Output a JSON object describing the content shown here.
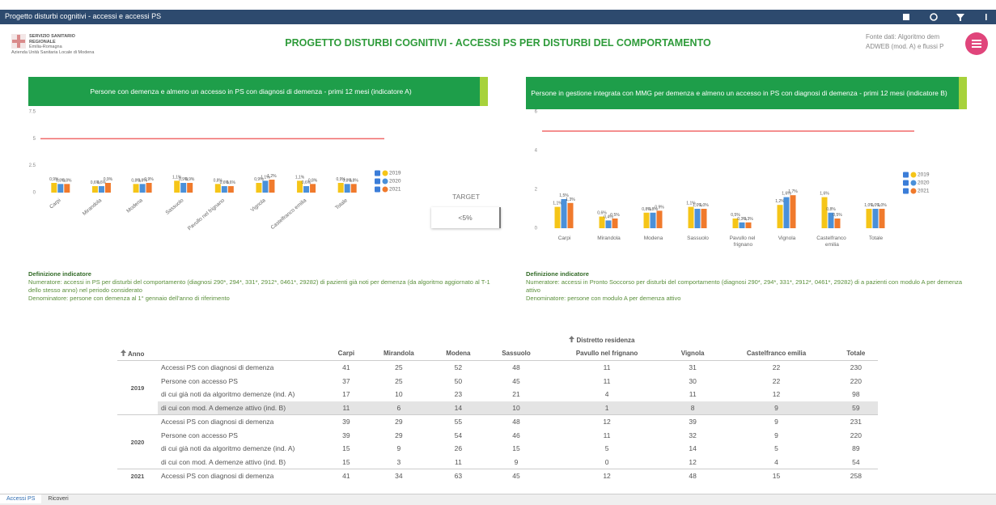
{
  "topbar": {
    "title": "Progetto disturbi cognitivi - accessi e accessi PS"
  },
  "header": {
    "logo": [
      "SERVIZIO SANITARIO REGIONALE",
      "Emilia-Romagna",
      "Azienda Unità Sanitaria Locale di Modena"
    ],
    "title": "PROGETTO DISTURBI COGNITIVI - ACCESSI PS PER DISTURBI DEL COMPORTAMENTO",
    "source": [
      "Fonte dati: Algoritmo dem",
      "ADWEB (mod. A) e flussi P"
    ]
  },
  "chart_data": [
    {
      "type": "bar",
      "title": "Persone con demenza e almeno un accesso in PS con diagnosi di demenza - primi 12 mesi (indicatore A)",
      "categories": [
        "Carpi",
        "Mirandola",
        "Modena",
        "Sassuolo",
        "Pavullo nel frignano",
        "Vignola",
        "Castelfranco emilia",
        "Totale"
      ],
      "series": [
        {
          "name": "2019",
          "color": "#f5c518",
          "values": [
            0.9,
            0.6,
            0.8,
            1.1,
            0.8,
            0.9,
            1.1,
            0.9
          ],
          "value_labels": [
            "0,9%",
            "0,6%",
            "0,8%",
            "1,1%",
            "0,8%",
            "0,9%",
            "1,1%",
            "0,9%"
          ]
        },
        {
          "name": "2020",
          "color": "#4a90d9",
          "values": [
            0.8,
            0.6,
            0.8,
            0.9,
            0.6,
            1.1,
            0.6,
            0.8
          ],
          "value_labels": [
            "0,8%",
            "0,6%",
            "0,8%",
            "0,9%",
            "0,6%",
            "1,1%",
            "0,6%",
            "0,8%"
          ]
        },
        {
          "name": "2021",
          "color": "#f07a2c",
          "values": [
            0.8,
            0.9,
            0.9,
            0.9,
            0.6,
            1.2,
            0.8,
            0.8
          ],
          "value_labels": [
            "0,8%",
            "0,9%",
            "0,9%",
            "0,9%",
            "0,6%",
            "1,2%",
            "0,8%",
            "0,8%"
          ]
        }
      ],
      "ylim": [
        0,
        7.5
      ],
      "yticks": [
        0,
        2.5,
        5,
        7.5
      ],
      "target": 5,
      "target_color": "#f06a6a",
      "grid": false,
      "legend": "right"
    },
    {
      "type": "bar",
      "title": "Persone in gestione integrata con MMG per demenza e almeno un accesso in PS con diagnosi di demenza - primi 12 mesi (indicatore B)",
      "categories": [
        "Carpi",
        "Mirandola",
        "Modena",
        "Sassuolo",
        "Pavullo nel frignano",
        "Vignola",
        "Castelfranco emilia",
        "Totale"
      ],
      "series": [
        {
          "name": "2019",
          "color": "#f5c518",
          "values": [
            1.1,
            0.6,
            0.8,
            1.1,
            0.5,
            1.2,
            1.6,
            1.0
          ],
          "value_labels": [
            "1,1%",
            "0,6%",
            "0,8%",
            "1,1%",
            "0,5%",
            "1,2%",
            "1,6%",
            "1,0%"
          ]
        },
        {
          "name": "2020",
          "color": "#4a90d9",
          "values": [
            1.5,
            0.4,
            0.8,
            1.0,
            0.3,
            1.6,
            0.8,
            1.0
          ],
          "value_labels": [
            "1,5%",
            "0,4%",
            "0,8%",
            "1,0%",
            "0,3%",
            "1,6%",
            "0,8%",
            "1,0%"
          ]
        },
        {
          "name": "2021",
          "color": "#f07a2c",
          "values": [
            1.3,
            0.5,
            0.9,
            1.0,
            0.3,
            1.7,
            0.5,
            1.0
          ],
          "value_labels": [
            "1,3%",
            "0,5%",
            "0,9%",
            "1,0%",
            "0,3%",
            "1,7%",
            "0,5%",
            "1,0%"
          ]
        }
      ],
      "ylim": [
        0,
        6
      ],
      "yticks": [
        0,
        2,
        4,
        6
      ],
      "target": 5,
      "target_color": "#f06a6a",
      "grid": false,
      "legend": "right"
    }
  ],
  "target_box": {
    "label": "TARGET",
    "value": "<5%"
  },
  "definitions": [
    {
      "title": "Definizione indicatore",
      "lines": [
        "Numeratore: accessi in PS per disturbi del comportamento (diagnosi 290*, 294*, 331*, 2912*, 0461*, 29282) di pazienti già noti per demenza (da algoritmo aggiornato al T-1 dello stesso anno) nel periodo considerato",
        "Denominatore: persone con demenza al 1° gennaio dell'anno di riferimento"
      ]
    },
    {
      "title": "Definizione indicatore",
      "lines": [
        "Numeratore: accessi in Pronto Soccorso per disturbi del comportamento (diagnosi 290*, 294*, 331*, 2912*, 0461*, 29282) di a pazienti con modulo A per demenza attivo",
        "Denominatore: persone con modulo A per demenza attivo"
      ]
    }
  ],
  "table": {
    "group_header": "Distretto residenza",
    "year_header": "Anno",
    "columns": [
      "Carpi",
      "Mirandola",
      "Modena",
      "Sassuolo",
      "Pavullo nel frignano",
      "Vignola",
      "Castelfranco emilia",
      "Totale"
    ],
    "groups": [
      {
        "year": "2019",
        "rows": [
          {
            "label": "Accessi PS con diagnosi di demenza",
            "cells": [
              41,
              25,
              52,
              48,
              11,
              31,
              22,
              230
            ]
          },
          {
            "label": "Persone con accesso PS",
            "cells": [
              37,
              25,
              50,
              45,
              11,
              30,
              22,
              220
            ]
          },
          {
            "label": "di cui già noti da algoritmo demenze (ind. A)",
            "cells": [
              17,
              10,
              23,
              21,
              4,
              11,
              12,
              98
            ]
          },
          {
            "label": "di cui con mod. A demenze attivo (ind. B)",
            "cells": [
              11,
              6,
              14,
              10,
              1,
              8,
              9,
              59
            ]
          }
        ]
      },
      {
        "year": "2020",
        "rows": [
          {
            "label": "Accessi PS con diagnosi di demenza",
            "cells": [
              39,
              29,
              55,
              48,
              12,
              39,
              9,
              231
            ]
          },
          {
            "label": "Persone con accesso PS",
            "cells": [
              39,
              29,
              54,
              46,
              11,
              32,
              9,
              220
            ]
          },
          {
            "label": "di cui già noti da algoritmo demenze (ind. A)",
            "cells": [
              15,
              9,
              26,
              15,
              5,
              14,
              5,
              89
            ]
          },
          {
            "label": "di cui con mod. A demenze attivo (ind. B)",
            "cells": [
              15,
              3,
              11,
              9,
              0,
              12,
              4,
              54
            ]
          }
        ]
      },
      {
        "year": "2021",
        "rows": [
          {
            "label": "Accessi PS con diagnosi di demenza",
            "cells": [
              41,
              34,
              63,
              45,
              12,
              48,
              15,
              258
            ]
          }
        ]
      }
    ]
  },
  "tabs": [
    "Accessi PS",
    "Ricoveri"
  ]
}
